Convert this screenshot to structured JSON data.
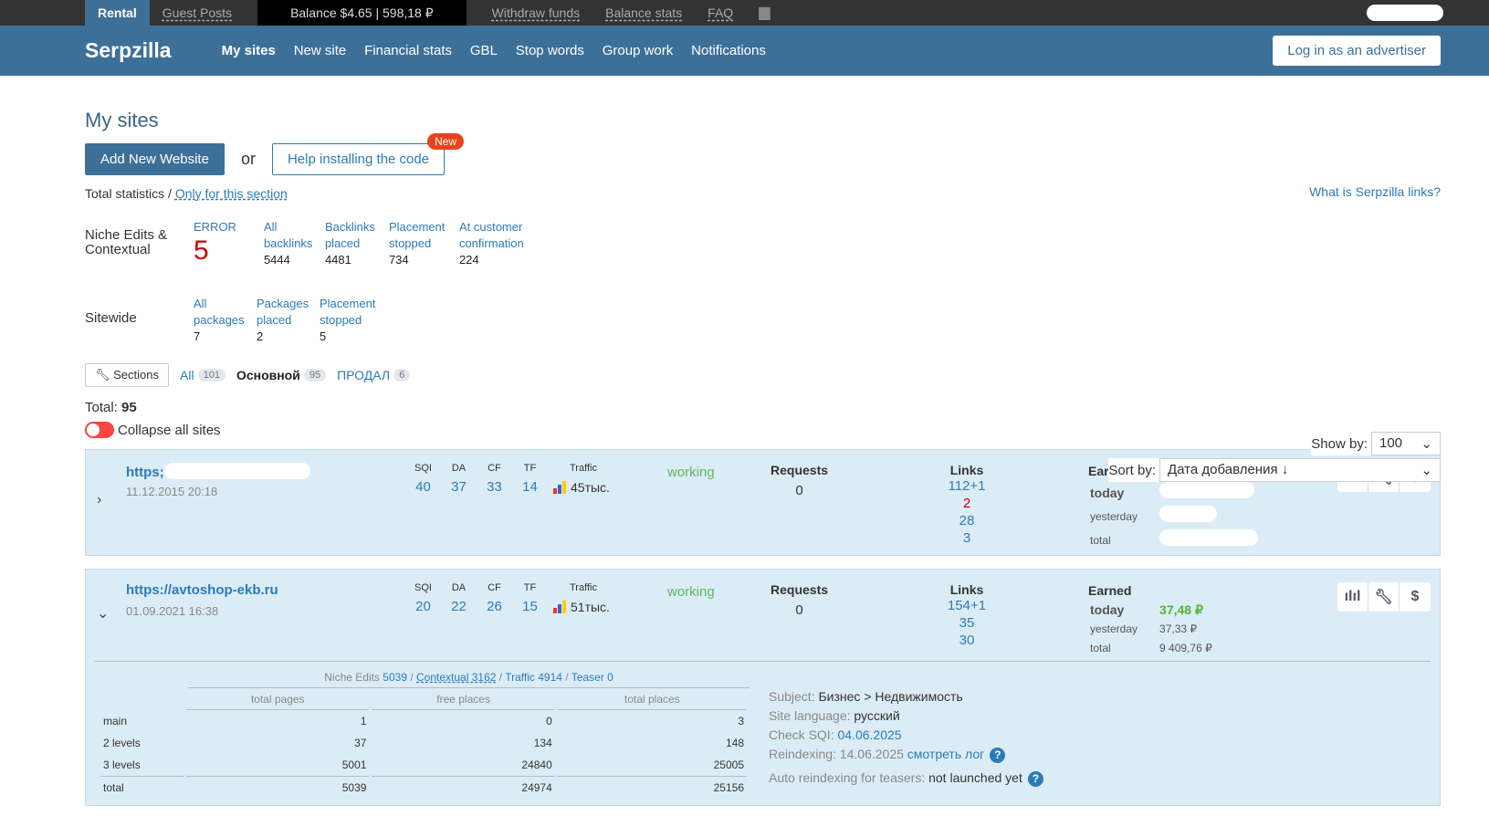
{
  "topbar": {
    "rental": "Rental",
    "guest_posts": "Guest Posts",
    "balance": "Balance $4.65 | 598,18 ₽",
    "withdraw": "Withdraw funds",
    "balance_stats": "Balance stats",
    "faq": "FAQ"
  },
  "header": {
    "logo": "Serpzilla",
    "nav": [
      "My sites",
      "New site",
      "Financial stats",
      "GBL",
      "Stop words",
      "Group work",
      "Notifications"
    ],
    "advertiser_btn": "Log in as an advertiser"
  },
  "page": {
    "title": "My sites",
    "add_btn": "Add New Website",
    "or": "or",
    "help_btn": "Help installing the code",
    "new_badge": "New",
    "what_link": "What is Serpzilla links?",
    "total_stats": "Total statistics /",
    "only_section": "Only for this section"
  },
  "niche": {
    "label": "Niche Edits & Contextual",
    "error_label": "ERROR",
    "error_value": "5",
    "cols": [
      {
        "label": "All backlinks",
        "value": "5444"
      },
      {
        "label": "Backlinks placed",
        "value": "4481"
      },
      {
        "label": "Placement stopped",
        "value": "734"
      },
      {
        "label": "At customer confirmation",
        "value": "224"
      }
    ]
  },
  "sitewide": {
    "label": "Sitewide",
    "cols": [
      {
        "label": "All packages",
        "value": "7"
      },
      {
        "label": "Packages placed",
        "value": "2"
      },
      {
        "label": "Placement stopped",
        "value": "5"
      }
    ]
  },
  "sections": {
    "btn": "Sections",
    "tabs": [
      {
        "label": "All",
        "count": "101"
      },
      {
        "label": "Основной",
        "count": "95"
      },
      {
        "label": "ПРОДАЛ",
        "count": "6"
      }
    ]
  },
  "total": {
    "label": "Total:",
    "value": "95"
  },
  "collapse_label": "Collapse all sites",
  "show_by": {
    "label": "Show by:",
    "value": "100"
  },
  "sort_by": {
    "label": "Sort by:",
    "value": "Дата добавления ↓"
  },
  "metric_headers": {
    "sqi": "SQI",
    "da": "DA",
    "cf": "CF",
    "tf": "TF",
    "traffic": "Traffic",
    "requests": "Requests",
    "links": "Links",
    "earned": "Earned",
    "today": "today",
    "yesterday": "yesterday",
    "total": "total"
  },
  "sites": [
    {
      "url": "https;",
      "date": "11.12.2015 20:18",
      "sqi": "40",
      "da": "37",
      "cf": "33",
      "tf": "14",
      "traffic": "45тыс.",
      "status": "working",
      "requests": "0",
      "links": [
        "112+1",
        "2",
        "28",
        "3"
      ]
    },
    {
      "url": "https://avtoshop-ekb.ru",
      "date": "01.09.2021 16:38",
      "sqi": "20",
      "da": "22",
      "cf": "26",
      "tf": "15",
      "traffic": "51тыс.",
      "status": "working",
      "requests": "0",
      "links": [
        "154+1",
        "35",
        "30"
      ],
      "earned_today": "37,48 ₽",
      "earned_yesterday": "37,33 ₽",
      "earned_total": "9 409,76 ₽",
      "detail": {
        "niche": "Niche Edits",
        "niche_v": "5039",
        "contextual": "Contextual 3162",
        "traffic": "Traffic 4914",
        "teaser": "Teaser 0",
        "headers": [
          "total pages",
          "free places",
          "total places"
        ],
        "rows": [
          [
            "main",
            "1",
            "0",
            "3"
          ],
          [
            "2 levels",
            "37",
            "134",
            "148"
          ],
          [
            "3 levels",
            "5001",
            "24840",
            "25005"
          ],
          [
            "total",
            "5039",
            "24974",
            "25156"
          ]
        ],
        "subject_label": "Subject:",
        "subject": "Бизнес > Недвижимость",
        "lang_label": "Site language:",
        "lang": "русский",
        "sqi_label": "Check SQI:",
        "sqi_date": "04.06.2025",
        "reindex_label": "Reindexing: 14.06.2025",
        "reindex_link": "смотреть лог",
        "auto_label": "Auto reindexing for teasers:",
        "auto_value": "not launched yet"
      }
    }
  ],
  "colors": {
    "brand": "#3d7099",
    "link": "#2b7bb9",
    "row_bg": "#dcecf7",
    "working": "#5cb85c",
    "error": "#cc0000"
  }
}
